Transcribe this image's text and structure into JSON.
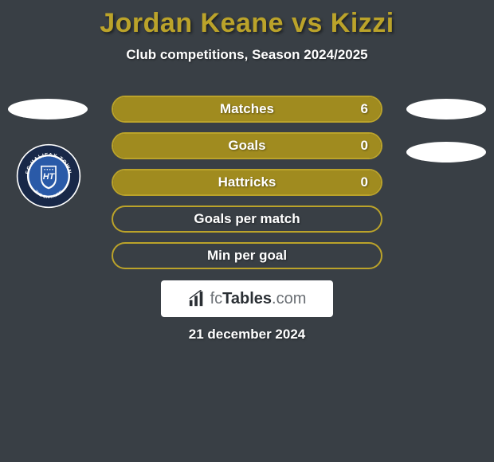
{
  "colors": {
    "background": "#393f45",
    "accent": "#bba32a",
    "accent_dark": "#a08b1f",
    "text_main": "#ffffff",
    "bar_text": "#ffffff",
    "ellipse": "#ffffff",
    "logo_bg": "#ffffff",
    "badge_outer": "#182848",
    "badge_ring": "#ffffff",
    "badge_inner": "#2a5aa8"
  },
  "title": {
    "text": "Jordan Keane vs Kizzi",
    "fontsize": 34,
    "color": "#bba32a"
  },
  "subtitle": {
    "text": "Club competitions, Season 2024/2025",
    "fontsize": 17,
    "color": "#ffffff"
  },
  "bars": {
    "border_color": "#bba32a",
    "fill_color": "#a08b1f",
    "height": 34,
    "label_fontsize": 17,
    "value_fontsize": 17,
    "items": [
      {
        "label": "Matches",
        "value": "6",
        "fill_ratio": 1.0,
        "show_value": true
      },
      {
        "label": "Goals",
        "value": "0",
        "fill_ratio": 1.0,
        "show_value": true
      },
      {
        "label": "Hattricks",
        "value": "0",
        "fill_ratio": 1.0,
        "show_value": true
      },
      {
        "label": "Goals per match",
        "value": "",
        "fill_ratio": 0.0,
        "show_value": false
      },
      {
        "label": "Min per goal",
        "value": "",
        "fill_ratio": 0.0,
        "show_value": false
      }
    ]
  },
  "fc_logo": {
    "prefix": "fc",
    "main": "Tables",
    "suffix": ".com"
  },
  "date": {
    "text": "21 december 2024",
    "fontsize": 17,
    "color": "#ffffff"
  },
  "badge": {
    "top_text": "FC HALIFAX TOWN",
    "initials": "HT",
    "bottom_text": "THE SHAYMEN"
  }
}
